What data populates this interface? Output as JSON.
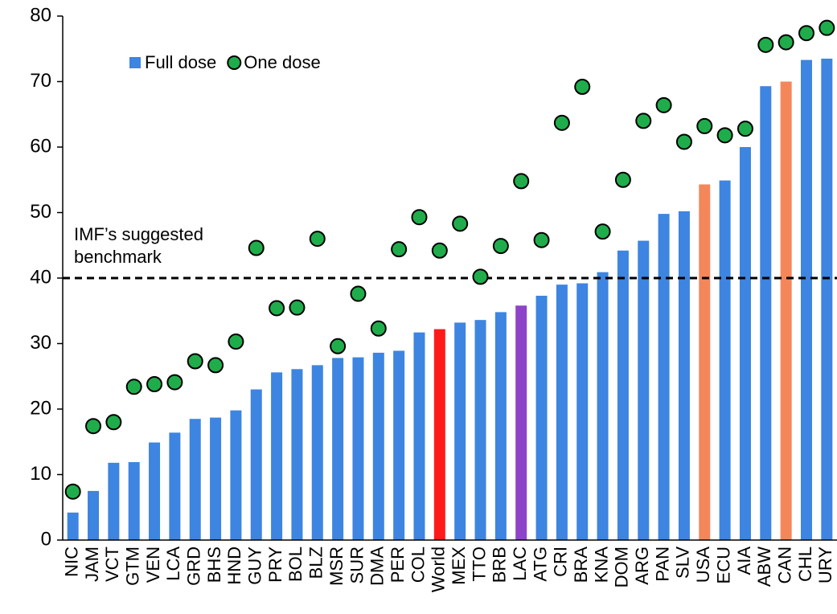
{
  "chart_data": {
    "type": "bar_scatter",
    "categories": [
      "NIC",
      "JAM",
      "VCT",
      "GTM",
      "VEN",
      "LCA",
      "GRD",
      "BHS",
      "HND",
      "GUY",
      "PRY",
      "BOL",
      "BLZ",
      "MSR",
      "SUR",
      "DMA",
      "PER",
      "COL",
      "World",
      "MEX",
      "TTO",
      "BRB",
      "LAC",
      "ATG",
      "CRI",
      "BRA",
      "KNA",
      "DOM",
      "ARG",
      "PAN",
      "SLV",
      "USA",
      "ECU",
      "AIA",
      "ABW",
      "CAN",
      "CHL",
      "URY"
    ],
    "series": [
      {
        "name": "Full dose",
        "type": "bar",
        "color": "#3d85e0",
        "colors": [
          "#3d85e0",
          "#3d85e0",
          "#3d85e0",
          "#3d85e0",
          "#3d85e0",
          "#3d85e0",
          "#3d85e0",
          "#3d85e0",
          "#3d85e0",
          "#3d85e0",
          "#3d85e0",
          "#3d85e0",
          "#3d85e0",
          "#3d85e0",
          "#3d85e0",
          "#3d85e0",
          "#3d85e0",
          "#3d85e0",
          "#ff1a1a",
          "#3d85e0",
          "#3d85e0",
          "#3d85e0",
          "#8e44c8",
          "#3d85e0",
          "#3d85e0",
          "#3d85e0",
          "#3d85e0",
          "#3d85e0",
          "#3d85e0",
          "#3d85e0",
          "#3d85e0",
          "#f4875a",
          "#3d85e0",
          "#3d85e0",
          "#3d85e0",
          "#f4875a",
          "#3d85e0",
          "#3d85e0"
        ],
        "values": [
          4.2,
          7.5,
          11.8,
          11.9,
          14.9,
          16.4,
          18.5,
          18.7,
          19.8,
          23.0,
          25.6,
          26.1,
          26.7,
          27.8,
          27.9,
          28.6,
          28.9,
          31.7,
          32.2,
          33.2,
          33.6,
          34.8,
          35.8,
          37.3,
          39.0,
          39.2,
          40.9,
          44.2,
          45.7,
          49.8,
          50.2,
          54.3,
          54.9,
          60.0,
          69.3,
          70.0,
          73.3,
          73.5
        ]
      },
      {
        "name": "One dose",
        "type": "scatter",
        "color": "#1fad4b",
        "values": [
          7.4,
          17.4,
          18.0,
          23.4,
          23.8,
          24.1,
          27.3,
          26.7,
          30.3,
          44.6,
          35.4,
          35.5,
          46.0,
          29.6,
          37.6,
          32.3,
          44.4,
          49.3,
          44.2,
          48.3,
          40.2,
          44.9,
          54.8,
          45.8,
          63.7,
          69.2,
          47.1,
          55.0,
          64.0,
          66.4,
          60.8,
          63.2,
          61.8,
          62.8,
          75.6,
          76.0,
          77.4,
          78.2
        ]
      }
    ],
    "reference_line": {
      "value": 40,
      "label": "IMF’s suggested benchmark"
    },
    "ylim": [
      0,
      80
    ],
    "yticks": [
      0,
      10,
      20,
      30,
      40,
      50,
      60,
      70,
      80
    ],
    "legend": "upper left"
  }
}
